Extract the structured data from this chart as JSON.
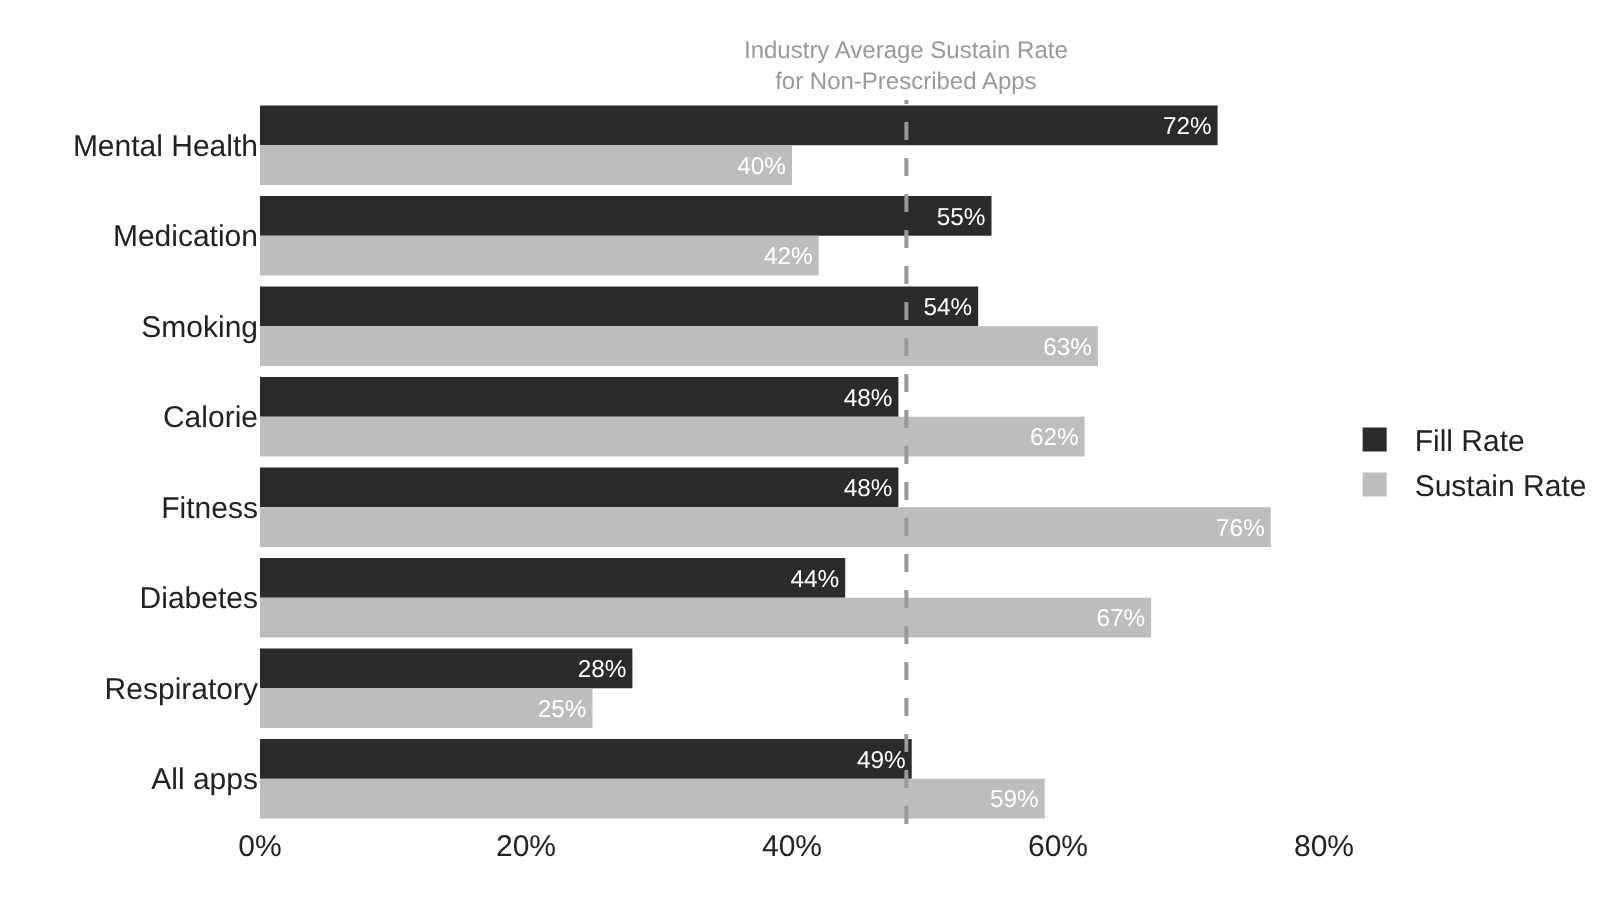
{
  "chart_data": {
    "type": "bar",
    "orientation": "horizontal",
    "categories": [
      "Mental Health",
      "Medication",
      "Smoking",
      "Calorie",
      "Fitness",
      "Diabetes",
      "Respiratory",
      "All apps"
    ],
    "series": [
      {
        "name": "Fill Rate",
        "color": "#2b2b2b",
        "values": [
          72,
          55,
          54,
          48,
          48,
          44,
          28,
          49
        ],
        "value_labels": [
          "72%",
          "55%",
          "54%",
          "48%",
          "48%",
          "44%",
          "28%",
          "49%"
        ]
      },
      {
        "name": "Sustain Rate",
        "color": "#bdbdbd",
        "values": [
          40,
          42,
          63,
          62,
          76,
          67,
          25,
          59
        ],
        "value_labels": [
          "40%",
          "42%",
          "63%",
          "62%",
          "76%",
          "67%",
          "25%",
          "59%"
        ]
      }
    ],
    "xlim": [
      0,
      80
    ],
    "xticks": [
      {
        "value": 0,
        "label": "0%"
      },
      {
        "value": 20,
        "label": "20%"
      },
      {
        "value": 40,
        "label": "40%"
      },
      {
        "value": 60,
        "label": "60%"
      },
      {
        "value": 80,
        "label": "80%"
      }
    ],
    "ref_lines": [
      {
        "axis": "x",
        "value": 48.6,
        "label": "Industry Average Sustain Rate\nfor Non-Prescribed Apps",
        "color": "#999999",
        "line_style": "dashed"
      }
    ],
    "legend": "right"
  }
}
